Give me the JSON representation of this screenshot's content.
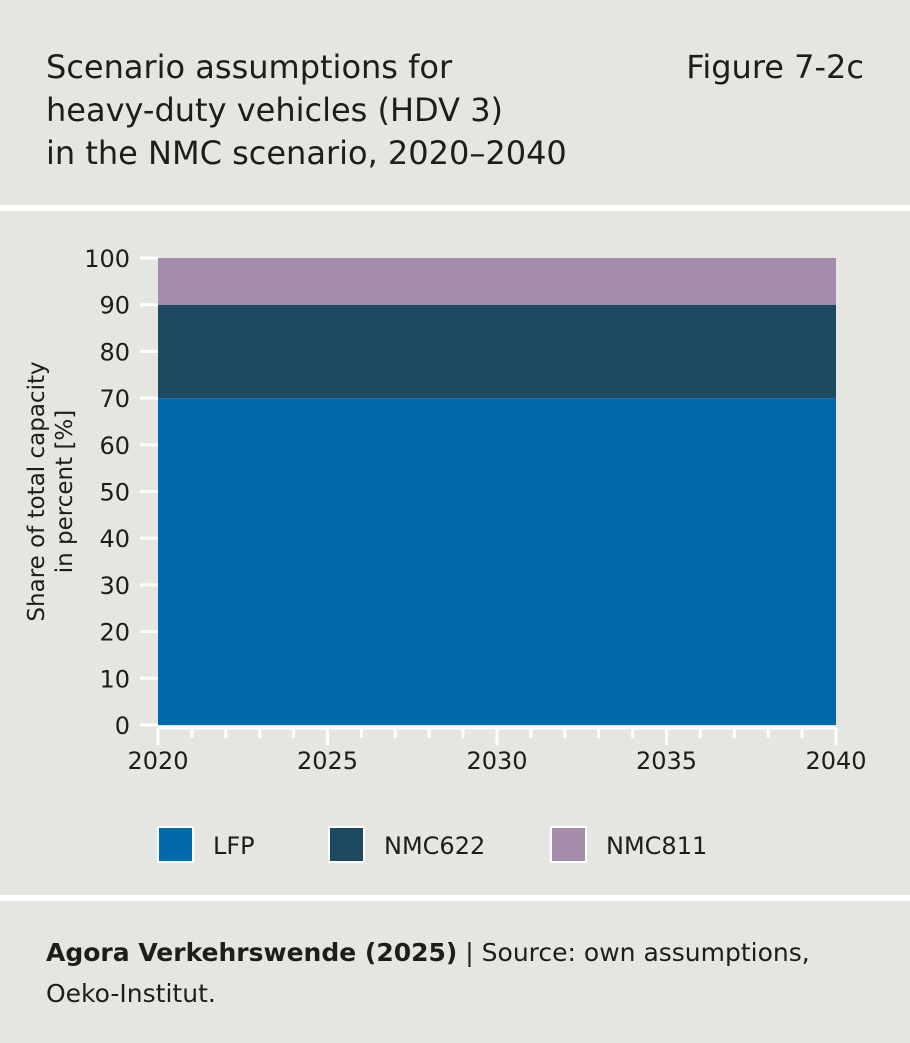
{
  "header": {
    "title": "Scenario assumptions for\nheavy-duty vehicles (HDV 3)\nin the NMC scenario, 2020–2040",
    "figure_label": "Figure 7-2c"
  },
  "chart_data": {
    "type": "area",
    "stacked": true,
    "x": [
      2020,
      2040
    ],
    "xlim": [
      2020,
      2040
    ],
    "xticks": [
      2020,
      2025,
      2030,
      2035,
      2040
    ],
    "ylim": [
      0,
      100
    ],
    "yticks": [
      0,
      10,
      20,
      30,
      40,
      50,
      60,
      70,
      80,
      90,
      100
    ],
    "ylabel": "Share of total capacity\nin percent [%]",
    "ylabel_lines": [
      "Share of total capacity",
      "in percent [%]"
    ],
    "grid": false,
    "legend_position": "bottom",
    "series": [
      {
        "name": "LFP",
        "values": [
          70,
          70
        ],
        "color": "#0069aa"
      },
      {
        "name": "NMC622",
        "values": [
          20,
          20
        ],
        "color": "#1d4961"
      },
      {
        "name": "NMC811",
        "values": [
          10,
          10
        ],
        "color": "#a38daa"
      }
    ]
  },
  "footer": {
    "publisher": "Agora Verkehrswende (2025)",
    "separator": " | ",
    "source": "Source: own assumptions, Oeko-Institut."
  }
}
